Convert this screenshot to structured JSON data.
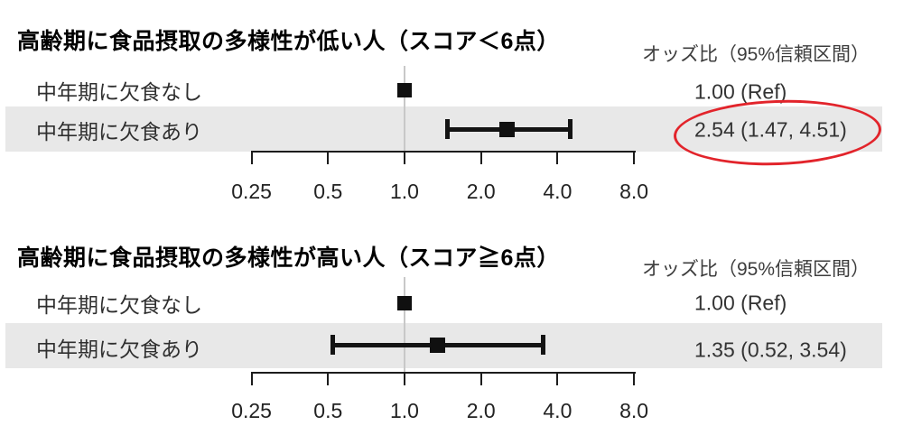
{
  "colors": {
    "highlight": "#e2242b",
    "band": "#e8e8e8",
    "ref_line": "#c8c8c8",
    "ink": "#141414"
  },
  "chart_data": [
    {
      "type": "forest",
      "scale": "log2",
      "title": "高齢期に食品摂取の多様性が低い人（スコア＜6点）",
      "value_header": "オッズ比（95%信頼区間）",
      "xlim": [
        0.25,
        8.0
      ],
      "ref_value": 1.0,
      "axis_ticks": [
        0.25,
        0.5,
        1.0,
        2.0,
        4.0,
        8.0
      ],
      "axis_tick_labels": [
        "0.25",
        "0.5",
        "1.0",
        "2.0",
        "4.0",
        "8.0"
      ],
      "rows": [
        {
          "label": "中年期に欠食なし",
          "or": 1.0,
          "ci_low": null,
          "ci_high": null,
          "value_text": "1.00 (Ref)",
          "shaded": false,
          "highlighted": false
        },
        {
          "label": "中年期に欠食あり",
          "or": 2.54,
          "ci_low": 1.47,
          "ci_high": 4.51,
          "value_text": "2.54 (1.47, 4.51)",
          "shaded": true,
          "highlighted": true
        }
      ]
    },
    {
      "type": "forest",
      "scale": "log2",
      "title": "高齢期に食品摂取の多様性が高い人（スコア≧6点）",
      "value_header": "オッズ比（95%信頼区間）",
      "xlim": [
        0.25,
        8.0
      ],
      "ref_value": 1.0,
      "axis_ticks": [
        0.25,
        0.5,
        1.0,
        2.0,
        4.0,
        8.0
      ],
      "axis_tick_labels": [
        "0.25",
        "0.5",
        "1.0",
        "2.0",
        "4.0",
        "8.0"
      ],
      "rows": [
        {
          "label": "中年期に欠食なし",
          "or": 1.0,
          "ci_low": null,
          "ci_high": null,
          "value_text": "1.00 (Ref)",
          "shaded": false,
          "highlighted": false
        },
        {
          "label": "中年期に欠食あり",
          "or": 1.35,
          "ci_low": 0.52,
          "ci_high": 3.54,
          "value_text": "1.35 (0.52, 3.54)",
          "shaded": true,
          "highlighted": false
        }
      ]
    }
  ]
}
